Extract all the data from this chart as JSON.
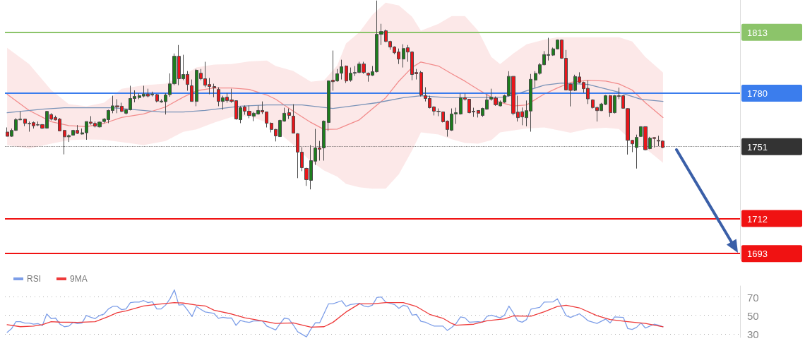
{
  "chart_data": [
    {
      "type": "candlestick",
      "categories": [
        null,
        null,
        null,
        null,
        null,
        null,
        null,
        null,
        null,
        null,
        null,
        null,
        null,
        null,
        null,
        null,
        null,
        null,
        null,
        null,
        null,
        null,
        null,
        null,
        null,
        null,
        null,
        null,
        null,
        null,
        null,
        null,
        null,
        null,
        null,
        null,
        null,
        null,
        null,
        null,
        null,
        null,
        null,
        null,
        null,
        null,
        null,
        null,
        null,
        null,
        null,
        null,
        null,
        null,
        null,
        null,
        null,
        null,
        null,
        null,
        null,
        null,
        null,
        null,
        null,
        null,
        null,
        null,
        null,
        null,
        null,
        null,
        null,
        null,
        null,
        null,
        null,
        null,
        null,
        null,
        null,
        null,
        null,
        null,
        null,
        null,
        null,
        null,
        null,
        null,
        null,
        null,
        null,
        null,
        null,
        null,
        null,
        null,
        null,
        null,
        null,
        null,
        null,
        null,
        null,
        null,
        null,
        null,
        null,
        null,
        null,
        null,
        null,
        null,
        null,
        null,
        null,
        null,
        null,
        null,
        null,
        null,
        null,
        null,
        null,
        null,
        null,
        null,
        null,
        null,
        null,
        null,
        null,
        null,
        null,
        null,
        null,
        null,
        null,
        null,
        null,
        null,
        null,
        null,
        null,
        null,
        null,
        null,
        null,
        null
      ],
      "ohlc": [
        [
          1758.9,
          1761.4,
          1756.6,
          1756.6
        ],
        [
          1756.6,
          1760.8,
          1756.3,
          1759.8
        ],
        [
          1759.8,
          1766.5,
          1759.5,
          1765.6
        ],
        [
          1765.5,
          1770.1,
          1765.5,
          1765.9
        ],
        [
          1765.9,
          1765.9,
          1762.1,
          1763.6
        ],
        [
          1763.6,
          1764.6,
          1759.1,
          1763.4
        ],
        [
          1764.0,
          1764.6,
          1760.8,
          1762.3
        ],
        [
          1762.9,
          1764.6,
          1762.1,
          1762.7
        ],
        [
          1762.9,
          1763.3,
          1760.5,
          1761.0
        ],
        [
          1761.0,
          1770.3,
          1760.8,
          1770.1
        ],
        [
          1768.4,
          1769.1,
          1765.2,
          1765.9
        ],
        [
          1766.8,
          1767.8,
          1765.2,
          1765.5
        ],
        [
          1765.9,
          1766.5,
          1759.5,
          1759.5
        ],
        [
          1759.8,
          1760.1,
          1746.8,
          1756.3
        ],
        [
          1756.3,
          1757.6,
          1753.5,
          1757.0
        ],
        [
          1757.2,
          1760.1,
          1757.0,
          1759.8
        ],
        [
          1759.8,
          1762.7,
          1757.8,
          1758.2
        ],
        [
          1757.8,
          1760.8,
          1757.6,
          1758.5
        ],
        [
          1758.5,
          1764.6,
          1754.7,
          1764.6
        ],
        [
          1764.3,
          1767.5,
          1762.9,
          1763.6
        ],
        [
          1763.6,
          1764.6,
          1761.4,
          1762.1
        ],
        [
          1761.7,
          1764.6,
          1761.4,
          1764.3
        ],
        [
          1764.6,
          1766.5,
          1763.7,
          1765.9
        ],
        [
          1765.6,
          1771.0,
          1763.7,
          1770.6
        ],
        [
          1770.6,
          1778.6,
          1769.1,
          1773.1
        ],
        [
          1773.1,
          1776.7,
          1769.1,
          1772.6
        ],
        [
          1772.9,
          1774.8,
          1769.7,
          1770.1
        ],
        [
          1769.1,
          1771.4,
          1768.4,
          1771.0
        ],
        [
          1771.0,
          1784.0,
          1770.6,
          1777.1
        ],
        [
          1777.1,
          1781.5,
          1775.0,
          1778.2
        ],
        [
          1777.6,
          1779.9,
          1776.7,
          1778.6
        ],
        [
          1778.4,
          1784.0,
          1777.7,
          1779.5
        ],
        [
          1779.5,
          1782.4,
          1777.7,
          1778.4
        ],
        [
          1779.0,
          1780.8,
          1778.2,
          1779.5
        ],
        [
          1779.2,
          1779.5,
          1775.0,
          1775.7
        ],
        [
          1775.2,
          1776.7,
          1774.8,
          1775.7
        ],
        [
          1775.4,
          1779.9,
          1768.4,
          1779.0
        ],
        [
          1779.2,
          1790.7,
          1778.0,
          1785.0
        ],
        [
          1785.1,
          1801.5,
          1784.3,
          1800.0
        ],
        [
          1800.0,
          1806.1,
          1784.3,
          1787.8
        ],
        [
          1787.8,
          1800.8,
          1787.0,
          1790.1
        ],
        [
          1790.1,
          1792.0,
          1781.3,
          1784.7
        ],
        [
          1784.0,
          1787.4,
          1775.5,
          1775.5
        ],
        [
          1775.5,
          1793.1,
          1772.9,
          1792.4
        ],
        [
          1790.8,
          1793.1,
          1787.0,
          1787.8
        ],
        [
          1787.8,
          1797.0,
          1783.2,
          1784.3
        ],
        [
          1784.7,
          1788.2,
          1779.4,
          1783.6
        ],
        [
          1783.6,
          1785.1,
          1777.8,
          1782.8
        ],
        [
          1782.0,
          1783.2,
          1772.9,
          1775.5
        ],
        [
          1775.5,
          1778.6,
          1771.0,
          1777.5
        ],
        [
          1777.8,
          1780.1,
          1774.8,
          1775.9
        ],
        [
          1776.3,
          1782.4,
          1774.8,
          1775.5
        ],
        [
          1775.9,
          1775.9,
          1765.6,
          1766.0
        ],
        [
          1765.6,
          1772.9,
          1763.7,
          1772.1
        ],
        [
          1772.5,
          1773.3,
          1768.3,
          1770.2
        ],
        [
          1770.2,
          1773.3,
          1766.4,
          1767.9
        ],
        [
          1767.5,
          1769.8,
          1764.8,
          1769.1
        ],
        [
          1768.7,
          1773.3,
          1768.3,
          1770.6
        ],
        [
          1770.6,
          1775.5,
          1768.7,
          1769.8
        ],
        [
          1769.8,
          1769.8,
          1761.4,
          1763.7
        ],
        [
          1763.7,
          1764.1,
          1758.7,
          1760.3
        ],
        [
          1760.3,
          1760.6,
          1753.8,
          1756.8
        ],
        [
          1756.4,
          1765.6,
          1756.4,
          1765.2
        ],
        [
          1764.8,
          1772.1,
          1764.5,
          1769.1
        ],
        [
          1769.4,
          1771.7,
          1766.0,
          1767.9
        ],
        [
          1767.5,
          1774.0,
          1758.3,
          1758.3
        ],
        [
          1758.0,
          1758.3,
          1733.9,
          1748.0
        ],
        [
          1748.0,
          1750.7,
          1737.7,
          1739.6
        ],
        [
          1739.2,
          1739.6,
          1729.7,
          1733.1
        ],
        [
          1732.7,
          1751.8,
          1727.8,
          1743.4
        ],
        [
          1743.1,
          1760.6,
          1741.1,
          1750.3
        ],
        [
          1750.3,
          1754.1,
          1743.4,
          1749.6
        ],
        [
          1750.3,
          1765.2,
          1743.4,
          1764.8
        ],
        [
          1764.1,
          1787.0,
          1759.5,
          1786.6
        ],
        [
          1787.0,
          1803.1,
          1781.3,
          1786.2
        ],
        [
          1786.6,
          1793.1,
          1786.2,
          1790.5
        ],
        [
          1790.8,
          1798.1,
          1787.4,
          1794.3
        ],
        [
          1794.7,
          1795.0,
          1785.5,
          1786.6
        ],
        [
          1787.0,
          1793.9,
          1786.2,
          1790.8
        ],
        [
          1790.8,
          1794.7,
          1789.3,
          1791.2
        ],
        [
          1791.2,
          1797.0,
          1790.8,
          1795.8
        ],
        [
          1795.8,
          1797.0,
          1790.5,
          1791.2
        ],
        [
          1790.8,
          1791.2,
          1786.2,
          1789.7
        ],
        [
          1789.7,
          1794.7,
          1789.3,
          1791.6
        ],
        [
          1791.6,
          1830.2,
          1791.2,
          1811.9
        ],
        [
          1811.9,
          1817.6,
          1806.1,
          1813.4
        ],
        [
          1813.8,
          1814.5,
          1807.7,
          1808.0
        ],
        [
          1808.0,
          1808.4,
          1803.5,
          1805.0
        ],
        [
          1805.0,
          1805.4,
          1801.1,
          1801.9
        ],
        [
          1802.3,
          1804.2,
          1795.8,
          1798.5
        ],
        [
          1798.5,
          1806.5,
          1793.9,
          1804.2
        ],
        [
          1804.6,
          1806.1,
          1797.0,
          1802.3
        ],
        [
          1802.3,
          1802.7,
          1787.0,
          1790.1
        ],
        [
          1791.2,
          1793.1,
          1787.4,
          1790.5
        ],
        [
          1791.2,
          1792.0,
          1778.2,
          1779.0
        ],
        [
          1778.6,
          1783.2,
          1775.5,
          1777.1
        ],
        [
          1777.1,
          1778.6,
          1771.7,
          1772.1
        ],
        [
          1772.5,
          1772.9,
          1767.9,
          1770.2
        ],
        [
          1770.2,
          1771.7,
          1767.5,
          1770.0
        ],
        [
          1769.8,
          1769.8,
          1764.1,
          1764.5
        ],
        [
          1764.8,
          1765.2,
          1756.4,
          1760.3
        ],
        [
          1759.9,
          1771.7,
          1759.5,
          1768.7
        ],
        [
          1768.7,
          1772.1,
          1763.3,
          1769.4
        ],
        [
          1768.7,
          1779.8,
          1768.3,
          1777.5
        ],
        [
          1777.5,
          1779.8,
          1775.9,
          1776.7
        ],
        [
          1776.7,
          1776.7,
          1769.1,
          1769.4
        ],
        [
          1770.2,
          1772.1,
          1767.1,
          1769.8
        ],
        [
          1770.6,
          1770.6,
          1766.8,
          1769.1
        ],
        [
          1767.9,
          1772.1,
          1767.1,
          1771.7
        ],
        [
          1771.3,
          1779.4,
          1771.0,
          1776.3
        ],
        [
          1776.7,
          1782.4,
          1775.9,
          1777.8
        ],
        [
          1777.3,
          1778.2,
          1773.1,
          1773.7
        ],
        [
          1773.1,
          1776.0,
          1772.8,
          1775.1
        ],
        [
          1775.1,
          1779.2,
          1774.7,
          1778.6
        ],
        [
          1778.6,
          1791.9,
          1778.2,
          1789.1
        ],
        [
          1789.1,
          1789.1,
          1768.0,
          1769.0
        ],
        [
          1769.7,
          1778.6,
          1764.6,
          1766.7
        ],
        [
          1769.9,
          1772.2,
          1762.6,
          1767.1
        ],
        [
          1766.7,
          1776.0,
          1762.0,
          1770.5
        ],
        [
          1770.3,
          1790.4,
          1759.1,
          1787.5
        ],
        [
          1787.1,
          1791.9,
          1783.0,
          1790.7
        ],
        [
          1790.7,
          1796.4,
          1790.0,
          1795.4
        ],
        [
          1795.4,
          1802.8,
          1795.1,
          1800.9
        ],
        [
          1800.5,
          1810.0,
          1797.7,
          1800.9
        ],
        [
          1800.6,
          1804.7,
          1800.2,
          1804.0
        ],
        [
          1804.0,
          1809.1,
          1803.7,
          1808.8
        ],
        [
          1808.8,
          1809.1,
          1798.6,
          1798.9
        ],
        [
          1798.9,
          1803.4,
          1781.5,
          1781.7
        ],
        [
          1784.9,
          1785.3,
          1772.8,
          1781.5
        ],
        [
          1781.5,
          1790.0,
          1781.1,
          1789.0
        ],
        [
          1788.8,
          1791.3,
          1785.3,
          1785.8
        ],
        [
          1785.8,
          1786.2,
          1780.2,
          1782.4
        ],
        [
          1782.6,
          1786.9,
          1774.1,
          1776.9
        ],
        [
          1776.3,
          1776.7,
          1771.6,
          1772.2
        ],
        [
          1772.2,
          1772.6,
          1764.6,
          1770.5
        ],
        [
          1770.5,
          1774.7,
          1770.3,
          1774.1
        ],
        [
          1773.9,
          1779.0,
          1773.5,
          1778.6
        ],
        [
          1778.6,
          1779.0,
          1767.1,
          1769.4
        ],
        [
          1769.4,
          1779.0,
          1769.0,
          1778.6
        ],
        [
          1778.6,
          1783.0,
          1776.7,
          1778.2
        ],
        [
          1778.6,
          1779.0,
          1771.6,
          1771.8
        ],
        [
          1771.6,
          1771.8,
          1746.7,
          1754.4
        ],
        [
          1754.4,
          1754.7,
          1748.0,
          1752.5
        ],
        [
          1750.5,
          1757.5,
          1739.1,
          1756.0
        ],
        [
          1756.5,
          1762.0,
          1756.3,
          1761.8
        ],
        [
          1761.8,
          1762.0,
          1748.9,
          1749.3
        ],
        [
          1749.9,
          1756.3,
          1749.6,
          1755.6
        ],
        [
          1755.9,
          1756.0,
          1750.5,
          1755.4
        ],
        [
          1754.4,
          1756.9,
          1751.2,
          1754.0
        ],
        [
          1754.0,
          1754.4,
          1750.2,
          1750.5
        ]
      ],
      "ylim": [
        1690,
        1830.5
      ],
      "yticks": [
        1693,
        1712,
        1751,
        1780,
        1813
      ],
      "tick_labels": "y",
      "series": [
        {
          "type": "line",
          "color": "#f28c8c",
          "values": [
            1779.4,
            null,
            null,
            null,
            null,
            1770.6,
            null,
            null,
            null,
            null,
            1764.5,
            null,
            null,
            null,
            1762.4,
            null,
            null,
            null,
            1761.8,
            null,
            null,
            null,
            1763.6,
            null,
            null,
            null,
            1766.8,
            null,
            null,
            null,
            null,
            1768.7,
            null,
            null,
            null,
            null,
            1772.5,
            null,
            null,
            null,
            1777.8,
            null,
            null,
            1781.3,
            null,
            null,
            null,
            1782.8,
            null,
            null,
            null,
            1782.8,
            null,
            null,
            null,
            1782.0,
            null,
            null,
            null,
            1779.0,
            null,
            1776.7,
            null,
            null,
            null,
            1770.2,
            null,
            null,
            null,
            1764.1,
            null,
            null,
            1760.3,
            null,
            null,
            1760.5,
            null,
            1762.5,
            null,
            null,
            1765.5,
            null,
            null,
            1771.5,
            null,
            null,
            1777.5,
            null,
            null,
            1786.5,
            null,
            null,
            1794.0,
            null,
            1796.9,
            null,
            null,
            null,
            1794.7,
            null,
            null,
            1790.5,
            null,
            null,
            1786.5,
            null,
            null,
            1782.0,
            null,
            null,
            1777.8,
            null,
            1775.0,
            null,
            null,
            1773.0,
            null,
            null,
            1773.6,
            null,
            null,
            null,
            1779.5,
            null,
            null,
            1782.8,
            null,
            null,
            1785.8,
            null,
            null,
            null,
            1787.0,
            null,
            null,
            null,
            1786.5,
            null,
            null,
            1785.0,
            null,
            null,
            1781.7,
            null,
            null,
            1774.8,
            null,
            null,
            null,
            1766.8
          ],
          "upper": [
            1804.6,
            null,
            null,
            null,
            null,
            1795.8,
            null,
            null,
            null,
            null,
            1781.7,
            null,
            null,
            null,
            1774.0,
            null,
            null,
            null,
            1772.9,
            null,
            null,
            null,
            1774.8,
            null,
            null,
            null,
            1782.4,
            null,
            null,
            null,
            null,
            1784.3,
            null,
            null,
            null,
            null,
            1785.1,
            null,
            null,
            null,
            1789.5,
            null,
            null,
            1793.9,
            null,
            null,
            null,
            1795.5,
            null,
            null,
            null,
            1795.8,
            null,
            null,
            null,
            1797.2,
            null,
            null,
            null,
            1797.7,
            null,
            1794.7,
            null,
            null,
            null,
            1792.0,
            null,
            null,
            null,
            1786.2,
            null,
            null,
            1787.0,
            null,
            null,
            1795.0,
            null,
            1807.0,
            null,
            null,
            1813.0,
            null,
            null,
            1822.6,
            null,
            null,
            1829.1,
            null,
            null,
            1827.5,
            null,
            null,
            1821.4,
            null,
            1813.8,
            null,
            null,
            null,
            1817.6,
            null,
            null,
            1821.8,
            null,
            null,
            1821.8,
            null,
            null,
            1813.8,
            null,
            null,
            1799.6,
            null,
            1795.8,
            null,
            null,
            1801.5,
            null,
            null,
            1806.5,
            null,
            null,
            null,
            1809.0,
            null,
            null,
            1810.3,
            null,
            null,
            1810.3,
            null,
            null,
            null,
            1810.3,
            null,
            null,
            null,
            1810.3,
            null,
            null,
            1810.3,
            null,
            null,
            1808.0,
            null,
            null,
            1799.6,
            null,
            null,
            null,
            1791.2
          ],
          "lower": [
            1751.8,
            null,
            null,
            null,
            null,
            1749.9,
            null,
            null,
            null,
            null,
            1752.6,
            null,
            null,
            null,
            1754.5,
            null,
            null,
            null,
            1754.9,
            null,
            null,
            null,
            1754.7,
            null,
            null,
            null,
            1753.5,
            null,
            null,
            null,
            null,
            1751.8,
            null,
            null,
            null,
            null,
            1754.0,
            null,
            null,
            null,
            1759.0,
            null,
            null,
            1760.3,
            null,
            null,
            null,
            1764.0,
            null,
            null,
            null,
            1767.0,
            null,
            null,
            null,
            1767.5,
            null,
            null,
            null,
            1764.1,
            null,
            1760.0,
            null,
            null,
            null,
            1752.0,
            null,
            null,
            null,
            1743.0,
            null,
            null,
            1738.0,
            null,
            null,
            1734.7,
            null,
            1730.8,
            null,
            null,
            1729.0,
            null,
            null,
            1728.2,
            null,
            null,
            1728.2,
            null,
            null,
            1736.0,
            null,
            null,
            1749.0,
            null,
            1758.7,
            null,
            null,
            null,
            1757.6,
            null,
            null,
            1755.0,
            null,
            null,
            1753.0,
            null,
            null,
            1752.6,
            null,
            null,
            1754.5,
            null,
            1758.7,
            null,
            null,
            1759.8,
            null,
            null,
            1760.8,
            null,
            null,
            null,
            1761.4,
            null,
            null,
            1760.0,
            null,
            null,
            1758.5,
            null,
            null,
            null,
            1760.6,
            null,
            null,
            null,
            1761.2,
            null,
            null,
            1760.5,
            null,
            null,
            1753.8,
            null,
            null,
            1750.0,
            null,
            null,
            null,
            1742.3
          ]
        },
        {
          "type": "line",
          "color": "#7a93b8",
          "values": [
            1769.4,
            null,
            null,
            null,
            null,
            null,
            null,
            null,
            1771.3,
            null,
            null,
            null,
            null,
            1772.1,
            null,
            null,
            null,
            null,
            null,
            null,
            null,
            null,
            null,
            null,
            1772.1,
            null,
            null,
            null,
            null,
            1771.0,
            null,
            null,
            null,
            null,
            null,
            1769.8,
            null,
            null,
            null,
            null,
            1769.8,
            null,
            null,
            null,
            null,
            1770.6,
            null,
            null,
            null,
            null,
            null,
            null,
            null,
            1772.9,
            null,
            null,
            null,
            null,
            null,
            1773.6,
            null,
            null,
            null,
            null,
            null,
            null,
            null,
            1773.6,
            null,
            null,
            null,
            null,
            null,
            null,
            1771.7,
            null,
            null,
            null,
            null,
            null,
            null,
            null,
            null,
            null,
            1774.8,
            null,
            null,
            null,
            null,
            null,
            1777.5,
            null,
            null,
            null,
            1778.6,
            null,
            null,
            null,
            null,
            null,
            1777.5,
            null,
            null,
            null,
            null,
            null,
            1777.5,
            null,
            null,
            null,
            null,
            null,
            null,
            1777.8,
            null,
            null,
            1779.7,
            null,
            null,
            null,
            null,
            null,
            1784.3,
            null,
            null,
            null,
            1785.5,
            null,
            null,
            null,
            null,
            null,
            1784.7,
            null,
            null,
            null,
            null,
            null,
            null,
            1780.5,
            null,
            null,
            null,
            null,
            1776.7,
            null,
            null,
            null,
            null,
            1775.5
          ]
        }
      ],
      "ref_lines": [
        {
          "axis": "y",
          "value": 1813,
          "color": "#8cc46a"
        },
        {
          "axis": "y",
          "value": 1780,
          "color": "#3b7ded"
        },
        {
          "axis": "y",
          "value": 1751,
          "color": "#333333",
          "line_style": "dotted"
        },
        {
          "axis": "y",
          "value": 1712,
          "color": "#f01212"
        },
        {
          "axis": "y",
          "value": 1693,
          "color": "#f01212"
        }
      ]
    },
    {
      "type": "line",
      "categories": [
        null,
        null,
        null,
        null,
        null,
        null,
        null,
        null,
        null,
        null,
        null,
        null,
        null,
        null,
        null,
        null,
        null,
        null,
        null,
        null,
        null,
        null,
        null,
        null,
        null,
        null,
        null,
        null,
        null,
        null,
        null,
        null,
        null,
        null,
        null,
        null,
        null,
        null,
        null,
        null,
        null,
        null,
        null,
        null,
        null,
        null,
        null,
        null,
        null,
        null,
        null,
        null,
        null,
        null,
        null,
        null,
        null,
        null,
        null,
        null,
        null,
        null,
        null,
        null,
        null,
        null,
        null,
        null,
        null,
        null,
        null,
        null,
        null,
        null,
        null,
        null,
        null,
        null,
        null,
        null,
        null,
        null,
        null,
        null,
        null,
        null,
        null,
        null,
        null,
        null,
        null,
        null,
        null,
        null,
        null,
        null,
        null,
        null,
        null,
        null,
        null,
        null,
        null,
        null,
        null,
        null,
        null,
        null,
        null,
        null,
        null,
        null,
        null,
        null,
        null,
        null,
        null,
        null,
        null,
        null,
        null,
        null,
        null,
        null,
        null,
        null,
        null,
        null,
        null,
        null,
        null,
        null,
        null,
        null,
        null,
        null,
        null,
        null,
        null,
        null,
        null,
        null,
        null,
        null,
        null,
        null,
        null,
        null,
        null,
        null
      ],
      "series": [
        {
          "name": "RSI",
          "color": "#7d9ee8",
          "values": [
            31.6,
            35.5,
            43.2,
            43.2,
            41.6,
            41.6,
            40.5,
            41.0,
            38.9,
            51.5,
            46.5,
            47.1,
            40.5,
            37.7,
            38.3,
            42.4,
            41.0,
            41.6,
            49.9,
            47.9,
            46.5,
            49.9,
            51.5,
            57.0,
            59.8,
            59.8,
            56.2,
            57.0,
            63.9,
            64.5,
            64.5,
            66.1,
            63.9,
            64.8,
            57.0,
            57.0,
            61.2,
            68.1,
            77.7,
            61.2,
            61.7,
            55.6,
            48.7,
            59.8,
            56.5,
            53.7,
            null,
            52.1,
            46.8,
            47.9,
            47.1,
            47.1,
            39.1,
            44.6,
            43.2,
            42.4,
            44.0,
            null,
            44.0,
            38.3,
            null,
            34.1,
            41.0,
            47.1,
            46.0,
            39.6,
            32.2,
            null,
            26.7,
            35.0,
            41.9,
            41.9,
            52.1,
            62.5,
            62.5,
            null,
            65.9,
            59.8,
            61.7,
            null,
            63.1,
            60.3,
            59.2,
            61.2,
            69.4,
            70.0,
            64.5,
            null,
            61.8,
            57.6,
            61.0,
            59.6,
            50.3,
            51.1,
            43.5,
            42.6,
            40.4,
            38.4,
            null,
            38.4,
            33.6,
            37.0,
            41.2,
            48.3,
            47.4,
            42.6,
            null,
            43.2,
            42.6,
            48.9,
            50.3,
            null,
            47.4,
            50.3,
            60.1,
            52.5,
            44.1,
            42.6,
            45.5,
            56.7,
            null,
            58.7,
            64.4,
            null,
            64.6,
            68.0,
            null,
            49.7,
            47.7,
            null,
            51.7,
            48.3,
            44.1,
            null,
            41.2,
            null,
            46.0,
            41.8,
            48.3,
            null,
            47.7,
            35.6,
            34.7,
            37.0,
            41.8,
            36.2,
            null,
            40.4,
            39.3,
            37.6
          ]
        },
        {
          "name": "9MA",
          "color": "#ee3a3a",
          "values": [
            39.9,
            null,
            null,
            37.7,
            null,
            null,
            38.3,
            null,
            39.9,
            null,
            43.2,
            null,
            42.7,
            null,
            null,
            null,
            42.4,
            null,
            null,
            null,
            43.2,
            null,
            null,
            48.7,
            null,
            52.9,
            null,
            54.8,
            null,
            null,
            null,
            60.3,
            null,
            null,
            62.0,
            null,
            null,
            null,
            63.9,
            null,
            63.4,
            null,
            null,
            61.2,
            null,
            60.3,
            null,
            55.6,
            null,
            null,
            null,
            51.5,
            null,
            null,
            47.4,
            null,
            null,
            null,
            44.0,
            null,
            null,
            41.3,
            null,
            null,
            null,
            41.8,
            null,
            null,
            null,
            37.2,
            null,
            null,
            37.7,
            null,
            42.4,
            null,
            null,
            53.7,
            null,
            null,
            62.5,
            null,
            null,
            62.5,
            null,
            null,
            63.9,
            null,
            null,
            null,
            63.8,
            null,
            null,
            59.6,
            null,
            null,
            51.1,
            null,
            null,
            46.9,
            null,
            41.2,
            39.3,
            null,
            null,
            null,
            40.4,
            null,
            null,
            44.1,
            null,
            null,
            null,
            46.3,
            null,
            49.4,
            null,
            null,
            null,
            49.1,
            null,
            null,
            53.9,
            null,
            null,
            59.6,
            null,
            61.0,
            null,
            null,
            58.2,
            null,
            null,
            null,
            49.7,
            null,
            null,
            45.5,
            null,
            null,
            null,
            43.2,
            null,
            null,
            null,
            41.2,
            null,
            null,
            null,
            37.6
          ]
        }
      ],
      "ylim": [
        26,
        82
      ],
      "yticks": [
        30,
        50,
        70
      ],
      "grid": "y",
      "legend": "top left",
      "tick_labels": "y"
    }
  ]
}
